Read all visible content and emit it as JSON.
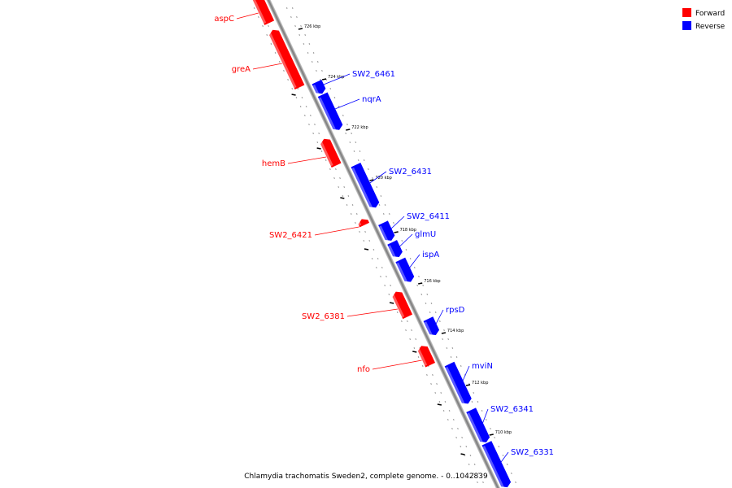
{
  "caption": "Chlamydia trachomatis Sweden2, complete genome. - 0..1042839",
  "legend": [
    {
      "label": "Forward",
      "color": "#ff0000"
    },
    {
      "label": "Reverse",
      "color": "#0000ff"
    }
  ],
  "scale_labels": [
    "726 kbp",
    "724 kbp",
    "722 kbp",
    "720 kbp",
    "718 kbp",
    "716 kbp",
    "714 kbp",
    "712 kbp",
    "710 kbp"
  ],
  "genes": [
    {
      "name": "aspC",
      "strand": "forward"
    },
    {
      "name": "greA",
      "strand": "forward"
    },
    {
      "name": "SW2_6461",
      "strand": "reverse"
    },
    {
      "name": "nqrA",
      "strand": "reverse"
    },
    {
      "name": "hemB",
      "strand": "forward"
    },
    {
      "name": "SW2_6431",
      "strand": "reverse"
    },
    {
      "name": "SW2_6411",
      "strand": "reverse"
    },
    {
      "name": "SW2_6421",
      "strand": "forward"
    },
    {
      "name": "glmU",
      "strand": "reverse"
    },
    {
      "name": "ispA",
      "strand": "reverse"
    },
    {
      "name": "SW2_6381",
      "strand": "forward"
    },
    {
      "name": "rpsD",
      "strand": "reverse"
    },
    {
      "name": "nfo",
      "strand": "forward"
    },
    {
      "name": "mviN",
      "strand": "reverse"
    },
    {
      "name": "SW2_6341",
      "strand": "reverse"
    },
    {
      "name": "SW2_6331",
      "strand": "reverse"
    }
  ]
}
